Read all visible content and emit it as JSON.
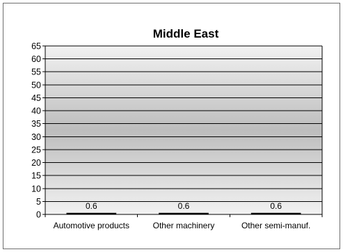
{
  "chart_data": {
    "type": "bar",
    "title": "Middle East",
    "categories": [
      "Automotive products",
      "Other machinery",
      "Other semi-manuf."
    ],
    "values": [
      0.6,
      0.6,
      0.6
    ],
    "data_labels": [
      "0.6",
      "0.6",
      "0.6"
    ],
    "xlabel": "",
    "ylabel": "",
    "ylim": [
      0,
      65
    ],
    "yticks": [
      0,
      5,
      10,
      15,
      20,
      25,
      30,
      35,
      40,
      45,
      50,
      55,
      60,
      65
    ],
    "grid": true,
    "legend": "none",
    "colors": {
      "bar": "#000000",
      "plot_gradient_edge": "#f2f2f2",
      "plot_gradient_center": "#bdbdbd",
      "gridline": "#000000"
    }
  }
}
